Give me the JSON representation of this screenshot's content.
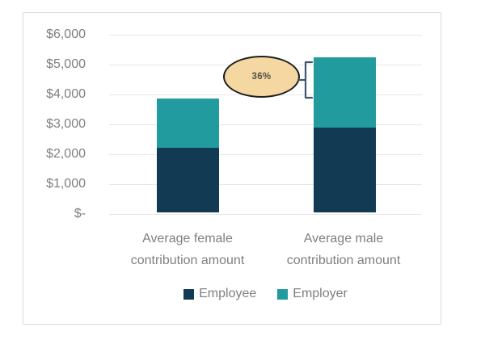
{
  "chart_data": {
    "type": "bar",
    "stacked": true,
    "title": "",
    "xlabel": "",
    "ylabel": "",
    "categories": [
      "Average female contribution amount",
      "Average male contribution amount"
    ],
    "x_axis_label_lines": [
      [
        "Average female",
        "contribution amount"
      ],
      [
        "Average male",
        "contribution amount"
      ]
    ],
    "series": [
      {
        "name": "Employee",
        "color": "#123a53",
        "values": [
          2150,
          2850
        ]
      },
      {
        "name": "Employer",
        "color": "#219b9e",
        "values": [
          1650,
          2350
        ]
      }
    ],
    "stack_totals": [
      3800,
      5200
    ],
    "ylim": [
      0,
      6000
    ],
    "y_tick_labels": [
      "$6,000",
      "$5,000",
      "$4,000",
      "$3,000",
      "$2,000",
      "$1,000",
      "$-"
    ],
    "grid": true,
    "legend_position": "bottom",
    "annotation": {
      "text": "36%",
      "shape": "ellipse-callout",
      "fill_color": "#f4d7a1",
      "outline_color": "#1f1f1f",
      "bracket_color": "#44546a"
    }
  }
}
